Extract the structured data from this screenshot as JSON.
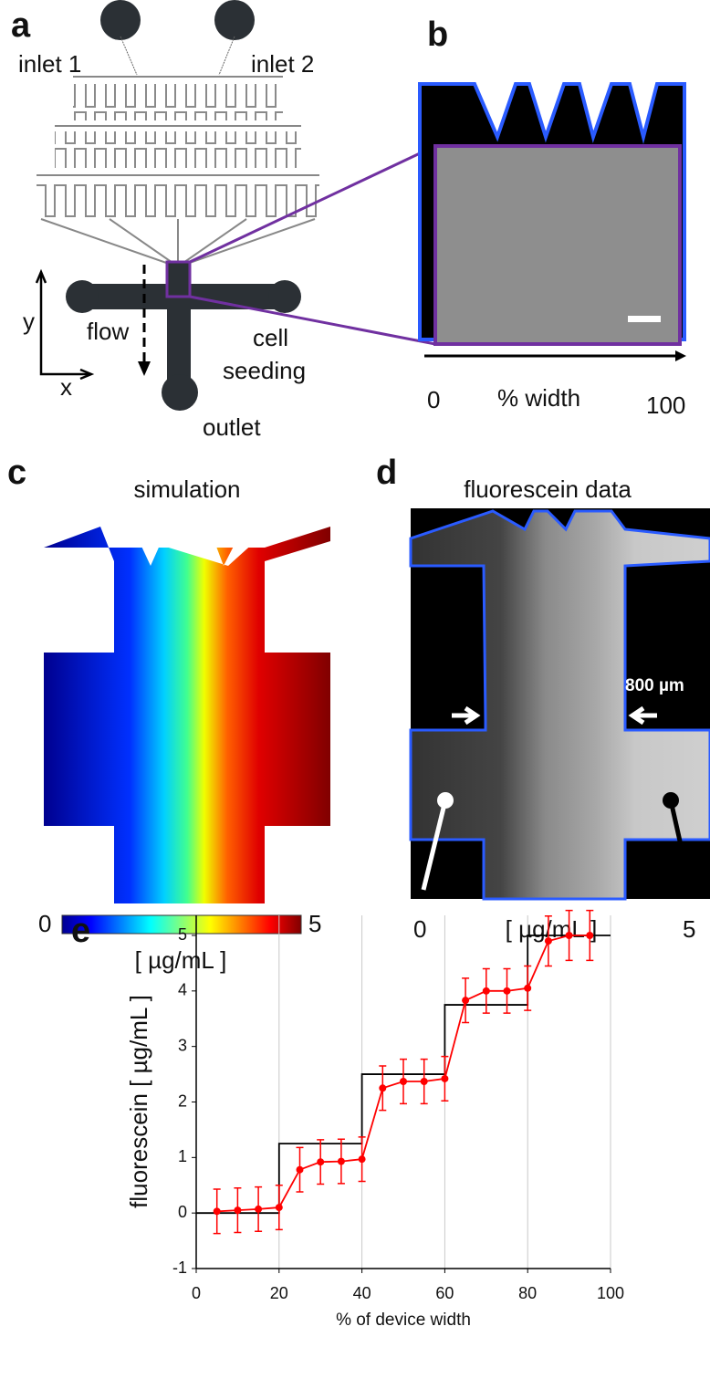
{
  "panels": {
    "a": {
      "label": "a",
      "inlet_1": "inlet 1",
      "inlet_2": "inlet 2",
      "axis_y": "y",
      "axis_x": "x",
      "flow": "flow",
      "cell_seeding": [
        "cell",
        "seeding"
      ],
      "outlet": "outlet"
    },
    "b": {
      "label": "b",
      "scale_min": "0",
      "axis_label": "% width",
      "scale_max": "100"
    },
    "c": {
      "label": "c",
      "title": "simulation",
      "scale_min": "0",
      "scale_max": "5",
      "unit": "[ µg/mL ]"
    },
    "d": {
      "label": "d",
      "title": "fluorescein data",
      "width_label": "800 µm",
      "scale_min": "0",
      "unit": "[ µg/mL ]",
      "scale_max": "5"
    },
    "e": {
      "label": "e"
    }
  },
  "chart_data": {
    "type": "line",
    "x_label": "% of device width",
    "y_label": "fluorescein [ µg/mL ]",
    "xlim": [
      0,
      100
    ],
    "xticks": [
      0,
      20,
      40,
      60,
      80,
      100
    ],
    "ylim": [
      -1,
      5
    ],
    "yticks": [
      -1,
      0,
      1,
      2,
      3,
      4,
      5
    ],
    "grid": true,
    "series": [
      {
        "color": "#000000",
        "x": [
          0,
          20,
          20,
          40,
          40,
          60,
          60,
          80,
          80,
          100
        ],
        "values": [
          0,
          0,
          1.25,
          1.25,
          2.5,
          2.5,
          3.75,
          3.75,
          5,
          5
        ]
      },
      {
        "color": "#ff0000",
        "x": [
          5,
          10,
          15,
          20,
          25,
          30,
          35,
          40,
          45,
          50,
          55,
          60,
          65,
          70,
          75,
          80,
          85,
          90,
          95
        ],
        "values": [
          0.03,
          0.05,
          0.07,
          0.1,
          0.78,
          0.92,
          0.93,
          0.97,
          2.25,
          2.37,
          2.37,
          2.42,
          3.83,
          4.0,
          4.0,
          4.05,
          4.9,
          5.0,
          5.0
        ],
        "errors": [
          0.4,
          0.4,
          0.4,
          0.4,
          0.4,
          0.4,
          0.4,
          0.4,
          0.4,
          0.4,
          0.4,
          0.4,
          0.4,
          0.4,
          0.4,
          0.4,
          0.45,
          0.45,
          0.45
        ]
      }
    ]
  }
}
